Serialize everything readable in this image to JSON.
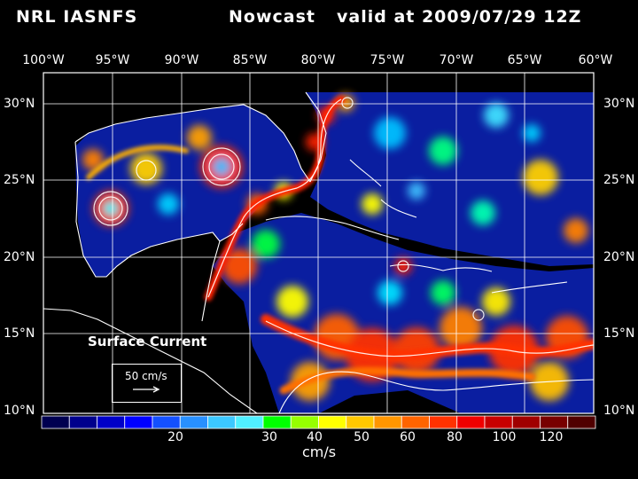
{
  "title": {
    "model": "NRL IASNFS",
    "product": "Nowcast",
    "valid": "valid at 2009/07/29 12Z"
  },
  "map": {
    "lon_labels": [
      "100°W",
      "95°W",
      "90°W",
      "85°W",
      "80°W",
      "75°W",
      "70°W",
      "65°W",
      "60°W"
    ],
    "lat_labels": [
      "30°N",
      "25°N",
      "20°N",
      "15°N",
      "10°N"
    ],
    "lon_range": [
      -100,
      -60
    ],
    "lat_range": [
      10,
      31
    ],
    "land_color": "#000000",
    "coastline_color": "#ffffff",
    "grid_color": "#ffffff"
  },
  "legend": {
    "label": "Surface Current",
    "reference_vector": "50 cm/s"
  },
  "colorbar": {
    "units": "cm/s",
    "tick_labels": [
      "20",
      "30",
      "40",
      "50",
      "60",
      "80",
      "100",
      "120"
    ],
    "colors": [
      "#000050",
      "#00008c",
      "#0000c8",
      "#0000ff",
      "#1450ff",
      "#2890ff",
      "#3cc8ff",
      "#50f0ff",
      "#00ff00",
      "#96ff00",
      "#ffff00",
      "#ffc800",
      "#ff9600",
      "#ff6400",
      "#ff3200",
      "#f00000",
      "#c80000",
      "#a00000",
      "#780000",
      "#500000"
    ]
  }
}
